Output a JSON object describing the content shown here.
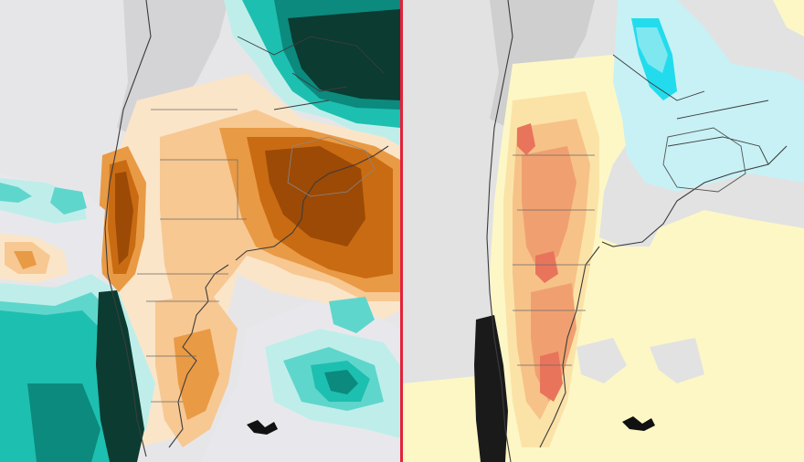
{
  "panels": [
    {
      "id": "left",
      "content": "precipitation-anomaly-map",
      "colors": {
        "background": "#e6e6e8",
        "ocean_light": "#e8e8ec",
        "dry_1": "#fbe5c8",
        "dry_2": "#f7c892",
        "dry_3": "#e99a45",
        "dry_4": "#c96b12",
        "dry_5": "#9c4a06",
        "wet_1": "#bfeeea",
        "wet_2": "#5fd6cc",
        "wet_3": "#1dbfb0",
        "wet_4": "#0c8a7e",
        "wet_5": "#0b3b31",
        "border": "#3c3c3c",
        "relief": "#c9c9c9"
      }
    },
    {
      "id": "right",
      "content": "temperature-anomaly-map",
      "colors": {
        "background": "#e2e2e2",
        "warm_1": "#fdf7c6",
        "warm_2": "#fbe3a8",
        "warm_3": "#f6c288",
        "warm_4": "#f0a070",
        "warm_5": "#e8745c",
        "cool_1": "#c8f1f5",
        "cool_2": "#7fe7f0",
        "cool_3": "#22dced",
        "border": "#3c3c3c",
        "relief": "#c9c9c9"
      }
    }
  ],
  "divider_color": "#e2223a"
}
